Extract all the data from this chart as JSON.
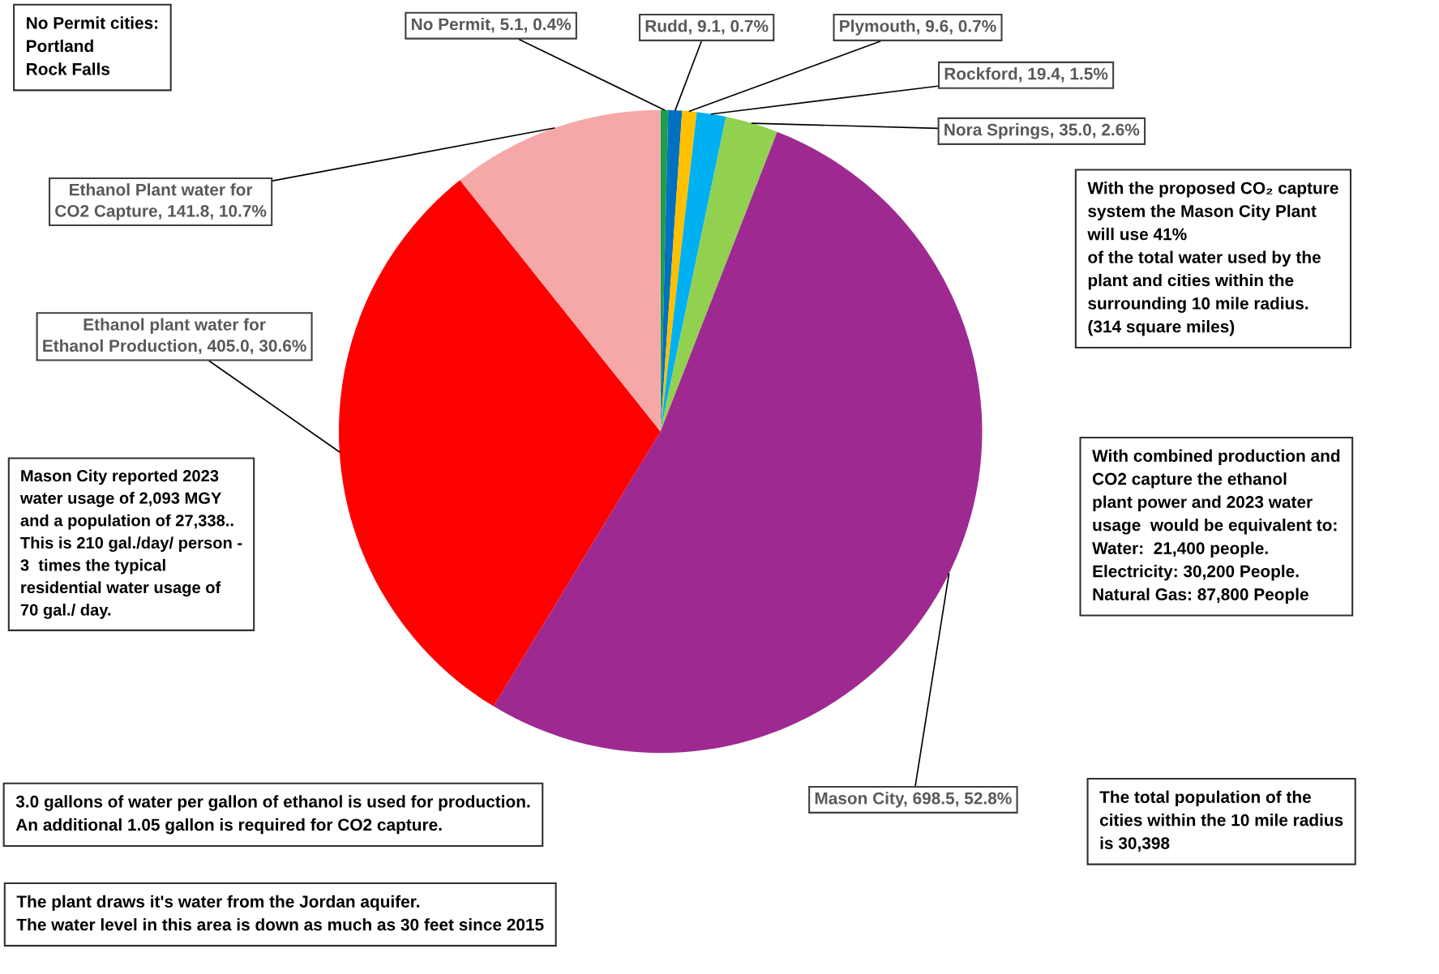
{
  "chart_data": {
    "type": "pie",
    "categories": [
      "No Permit",
      "Rudd",
      "Plymouth",
      "Rockford",
      "Nora Springs",
      "Mason City",
      "Ethanol plant water for Ethanol Production",
      "Ethanol Plant water for CO2 Capture"
    ],
    "values": [
      5.1,
      9.1,
      9.6,
      19.4,
      35.0,
      698.5,
      405.0,
      141.8
    ],
    "value_labels": [
      "5.1, 0.4%",
      "9.1, 0.7%",
      "9.6, 0.7%",
      "19.4, 1.5%",
      "35.0, 2.6%",
      "698.5, 52.8%",
      "405.0, 30.6%",
      "141.8, 10.7%"
    ],
    "colors": [
      "#1e9e4a",
      "#0070c0",
      "#ffc000",
      "#00b0f0",
      "#92d050",
      "#9e2a91",
      "#ff0000",
      "#f6a8a8"
    ],
    "legend": false,
    "annotations": [
      "No Permit cities:\nPortland\nRock Falls",
      "With the proposed CO₂ capture\nsystem the Mason City Plant\nwill use 41%\nof the total water used by the\nplant and cities within the\nsurrounding 10 mile radius.\n(314 square miles)",
      "With combined production and\nCO2 capture the ethanol\nplant power and 2023 water\nusage  would be equivalent to:\nWater:  21,400 people.\nElectricity: 30,200 People.\nNatural Gas: 87,800 People",
      "Mason City reported 2023\nwater usage of 2,093 MGY\nand a population of 27,338..\nThis is 210 gal./day/ person -\n3  times the typical\nresidential water usage of\n70 gal./ day.",
      "3.0 gallons of water per gallon of ethanol is used for production.\nAn additional 1.05 gallon is required for CO2 capture.",
      "The plant draws it's water from the Jordan aquifer.\nThe water level in this area is down as much as 30 feet since 2015",
      "The total population of the\ncities within the 10 mile radius\nis 30,398"
    ]
  }
}
